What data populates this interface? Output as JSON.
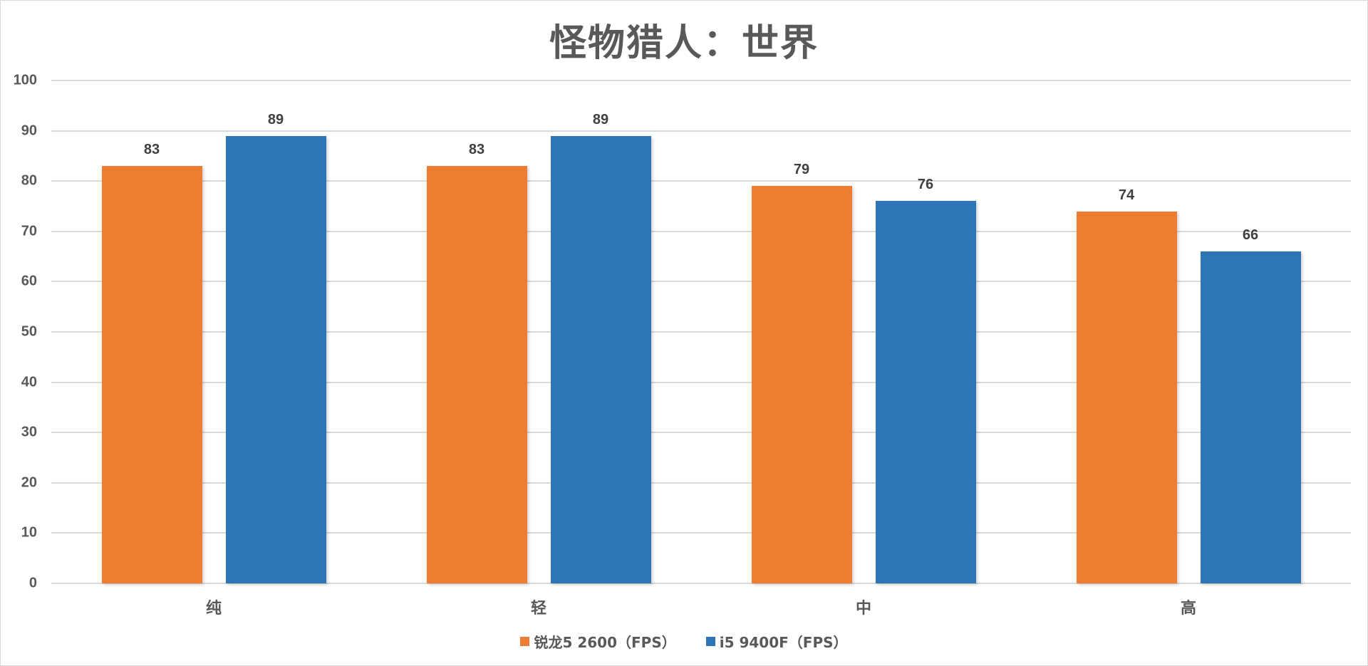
{
  "chart_data": {
    "type": "bar",
    "title": "怪物猎人：世界",
    "xlabel": "",
    "ylabel": "",
    "categories": [
      "纯",
      "轻",
      "中",
      "高"
    ],
    "series": [
      {
        "name": "锐龙5 2600（FPS）",
        "color": "#ED7D31",
        "values": [
          83,
          83,
          79,
          74
        ]
      },
      {
        "name": "i5 9400F（FPS）",
        "color": "#2E75B6",
        "values": [
          89,
          89,
          76,
          66
        ]
      }
    ],
    "ylim": [
      0,
      100
    ],
    "yticks": [
      0,
      10,
      20,
      30,
      40,
      50,
      60,
      70,
      80,
      90,
      100
    ],
    "grid": true,
    "legend_position": "bottom",
    "data_labels": true
  },
  "colors": {
    "orange": "#ED7D31",
    "blue": "#2E75B6",
    "grid": "#D9D9D9",
    "text": "#595959"
  }
}
